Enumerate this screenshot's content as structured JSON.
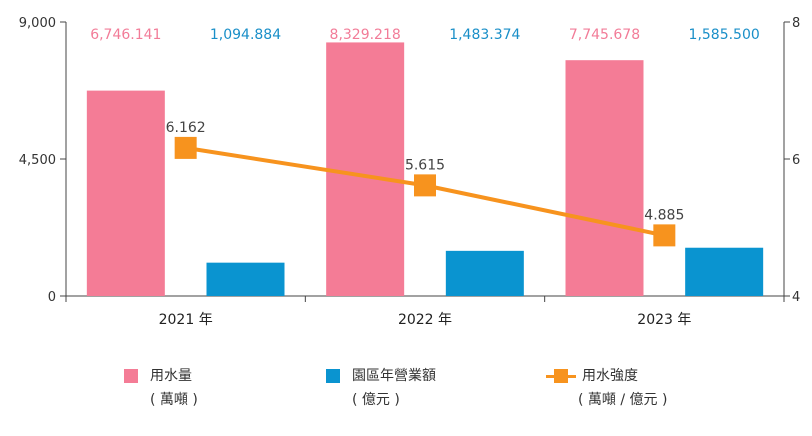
{
  "chart_data": {
    "type": "bar",
    "categories": [
      "2021 年",
      "2022 年",
      "2023 年"
    ],
    "series": [
      {
        "name": "用水量",
        "unit": "( 萬噸 )",
        "axis": "left",
        "values": [
          6746.141,
          8329.218,
          7745.678
        ],
        "labels": [
          "6,746.141",
          "8,329.218",
          "7,745.678"
        ],
        "color": "#f47c96",
        "label_color": "#f27c98"
      },
      {
        "name": "園區年營業額",
        "unit": "( 億元 )",
        "axis": "left",
        "values": [
          1094.884,
          1483.374,
          1585.5
        ],
        "labels": [
          "1,094.884",
          "1,483.374",
          "1,585.500"
        ],
        "color": "#0a94d0",
        "label_color": "#1a8fc8"
      },
      {
        "name": "用水強度",
        "unit": "( 萬噸 / 億元 )",
        "axis": "right",
        "type": "line",
        "values": [
          6.162,
          5.615,
          4.885
        ],
        "labels": [
          "6.162",
          "5.615",
          "4.885"
        ],
        "color": "#f7931e"
      }
    ],
    "y_left": {
      "range": [
        0,
        9000
      ],
      "ticks": [
        "0",
        "4,500",
        "9,000"
      ],
      "tick_values": [
        0,
        4500,
        9000
      ]
    },
    "y_right": {
      "range": [
        4,
        8
      ],
      "ticks": [
        "4",
        "6",
        "8"
      ],
      "tick_values": [
        4,
        6,
        8
      ]
    },
    "grid": false,
    "legend_position": "bottom",
    "title": "",
    "xlabel": "",
    "ylabel": ""
  }
}
